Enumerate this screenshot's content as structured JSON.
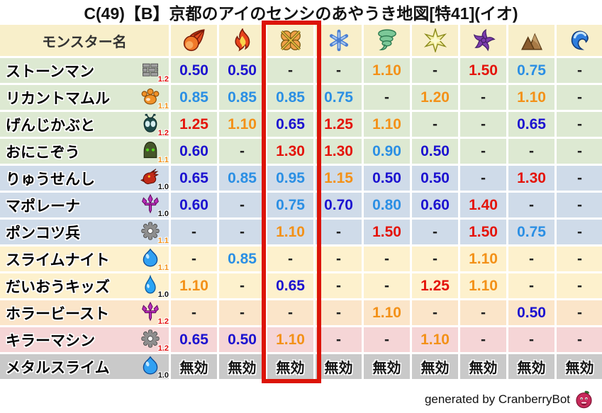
{
  "title": "C(49)【B】京都のアイのセンシのあやうき地図[特41](イオ)",
  "footer": {
    "credit": "generated by CranberryBot",
    "icon": "cranberry-icon"
  },
  "colors": {
    "header_bg": "#f8efca",
    "row_green": "#dde9d2",
    "row_blue": "#cfdbe9",
    "row_cream": "#fdf1cd",
    "row_peach": "#fbe5c9",
    "row_pink": "#f5d5d6",
    "row_gray": "#c9c9c9",
    "value_strong_resist": "#1c12d0",
    "value_mild_resist": "#2b8fe4",
    "value_weak": "#f39118",
    "value_very_weak": "#e4140a",
    "value_neutral": "#222222",
    "immune_text": "#111111",
    "highlight_border": "#dc1408",
    "modifier_12": "#e41010",
    "modifier_11": "#f39118",
    "modifier_10": "#111111"
  },
  "table": {
    "name_header": "モンスター名",
    "columns": [
      {
        "icon": "fireball-icon",
        "highlighted": false
      },
      {
        "icon": "flame-icon",
        "highlighted": false
      },
      {
        "icon": "explosion-icon",
        "highlighted": true
      },
      {
        "icon": "snowflake-icon",
        "highlighted": false
      },
      {
        "icon": "tornado-icon",
        "highlighted": false
      },
      {
        "icon": "spark-icon",
        "highlighted": false
      },
      {
        "icon": "pinwheel-icon",
        "highlighted": false
      },
      {
        "icon": "mountain-icon",
        "highlighted": false
      },
      {
        "icon": "wave-icon",
        "highlighted": false
      }
    ],
    "rows": [
      {
        "name": "ストーンマン",
        "icon": "brick-icon",
        "modifier": "1.2",
        "row_color": "row_green",
        "values": [
          "0.50",
          "0.50",
          "-",
          "-",
          "1.10",
          "-",
          "1.50",
          "0.75",
          "-"
        ]
      },
      {
        "name": "リカントマムル",
        "icon": "paw-icon",
        "modifier": "1.1",
        "row_color": "row_green",
        "values": [
          "0.85",
          "0.85",
          "0.85",
          "0.75",
          "-",
          "1.20",
          "-",
          "1.10",
          "-"
        ]
      },
      {
        "name": "げんじかぶと",
        "icon": "beetle-icon",
        "modifier": "1.2",
        "row_color": "row_green",
        "values": [
          "1.25",
          "1.10",
          "0.65",
          "1.25",
          "1.10",
          "-",
          "-",
          "0.65",
          "-"
        ]
      },
      {
        "name": "おにこぞう",
        "icon": "hood-icon",
        "modifier": "1.1",
        "row_color": "row_green",
        "values": [
          "0.60",
          "-",
          "1.30",
          "1.30",
          "0.90",
          "0.50",
          "-",
          "-",
          "-"
        ]
      },
      {
        "name": "りゅうせんし",
        "icon": "dragon-icon",
        "modifier": "1.0",
        "row_color": "row_blue",
        "values": [
          "0.65",
          "0.85",
          "0.95",
          "1.15",
          "0.50",
          "0.50",
          "-",
          "1.30",
          "-"
        ]
      },
      {
        "name": "マポレーナ",
        "icon": "trident-icon",
        "modifier": "1.0",
        "row_color": "row_blue",
        "values": [
          "0.60",
          "-",
          "0.75",
          "0.70",
          "0.80",
          "0.60",
          "1.40",
          "-",
          "-"
        ]
      },
      {
        "name": "ポンコツ兵",
        "icon": "gear-icon",
        "modifier": "1.1",
        "row_color": "row_blue",
        "values": [
          "-",
          "-",
          "1.10",
          "-",
          "1.50",
          "-",
          "1.50",
          "0.75",
          "-"
        ]
      },
      {
        "name": "スライムナイト",
        "icon": "slime-icon",
        "modifier": "1.1",
        "row_color": "row_cream",
        "values": [
          "-",
          "0.85",
          "-",
          "-",
          "-",
          "-",
          "1.10",
          "-",
          "-"
        ]
      },
      {
        "name": "だいおうキッズ",
        "icon": "droplet-icon",
        "modifier": "1.0",
        "row_color": "row_cream",
        "values": [
          "1.10",
          "-",
          "0.65",
          "-",
          "-",
          "1.25",
          "1.10",
          "-",
          "-"
        ]
      },
      {
        "name": "ホラービースト",
        "icon": "trident-icon",
        "modifier": "1.2",
        "row_color": "row_peach",
        "values": [
          "-",
          "-",
          "-",
          "-",
          "1.10",
          "-",
          "-",
          "0.50",
          "-"
        ]
      },
      {
        "name": "キラーマシン",
        "icon": "gear-icon",
        "modifier": "1.2",
        "row_color": "row_pink",
        "values": [
          "0.65",
          "0.50",
          "1.10",
          "-",
          "-",
          "1.10",
          "-",
          "-",
          "-"
        ]
      },
      {
        "name": "メタルスライム",
        "icon": "slime-icon",
        "modifier": "1.0",
        "row_color": "row_gray",
        "values": [
          "無効",
          "無効",
          "無効",
          "無効",
          "無効",
          "無効",
          "無効",
          "無効",
          "無効"
        ]
      }
    ]
  }
}
